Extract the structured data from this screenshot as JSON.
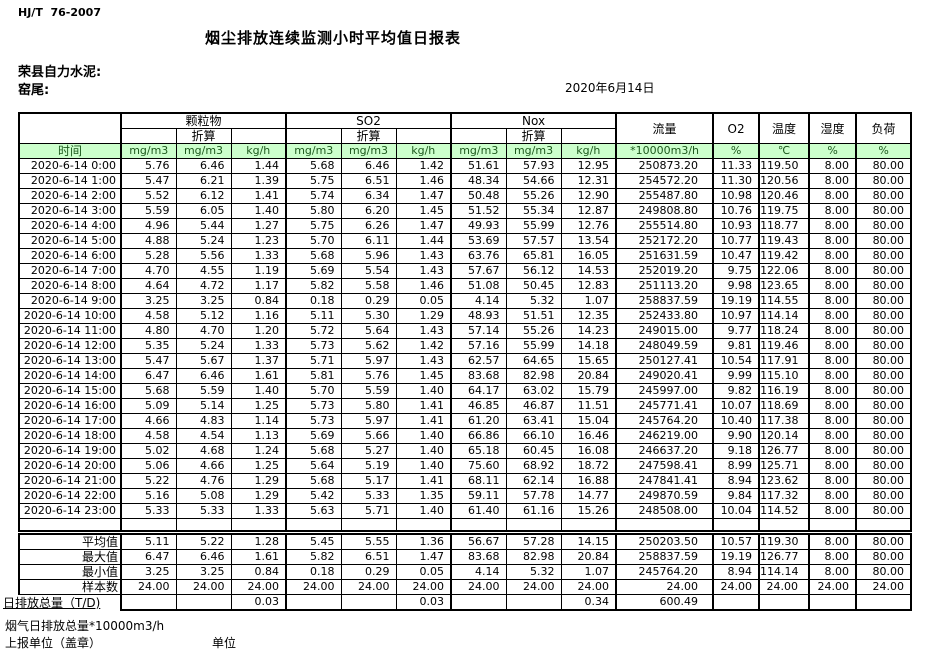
{
  "page": {
    "doc_code": "HJ/T  76-2007",
    "title": "烟尘排放连续监测小时平均值日报表",
    "company": "荣县自力水泥:",
    "kiln": "窑尾:",
    "date": "2020年6月14日",
    "footer_note": "烟气日排放总量*10000m3/h",
    "footer_report_unit": "上报单位（盖章）",
    "footer_unit": "单位"
  },
  "colors": {
    "header_green_bg": "#ccffcc",
    "header_green_text": "#1e5a1e",
    "border": "#000000"
  },
  "table": {
    "head": {
      "time": "时间",
      "pm": "颗粒物",
      "so2": "SO2",
      "nox": "Nox",
      "converted": "折算",
      "flow": "流量",
      "o2": "O2",
      "temp": "温度",
      "humidity": "湿度",
      "load": "负荷",
      "unit_mg": "mg/m3",
      "unit_kg": "kg/h",
      "unit_flow": "*10000m3/h",
      "unit_pct": "%",
      "unit_temp": "℃"
    },
    "rows": [
      [
        "2020-6-14 0:00",
        "5.76",
        "6.46",
        "1.44",
        "5.68",
        "6.46",
        "1.42",
        "51.61",
        "57.93",
        "12.95",
        "250873.20",
        "11.33",
        "119.50",
        "8.00",
        "80.00"
      ],
      [
        "2020-6-14 1:00",
        "5.47",
        "6.21",
        "1.39",
        "5.75",
        "6.51",
        "1.46",
        "48.34",
        "54.66",
        "12.31",
        "254572.20",
        "11.30",
        "120.56",
        "8.00",
        "80.00"
      ],
      [
        "2020-6-14 2:00",
        "5.52",
        "6.12",
        "1.41",
        "5.74",
        "6.34",
        "1.47",
        "50.48",
        "55.26",
        "12.90",
        "255487.80",
        "10.98",
        "120.46",
        "8.00",
        "80.00"
      ],
      [
        "2020-6-14 3:00",
        "5.59",
        "6.05",
        "1.40",
        "5.80",
        "6.20",
        "1.45",
        "51.52",
        "55.34",
        "12.87",
        "249808.80",
        "10.76",
        "119.75",
        "8.00",
        "80.00"
      ],
      [
        "2020-6-14 4:00",
        "4.96",
        "5.44",
        "1.27",
        "5.75",
        "6.26",
        "1.47",
        "49.93",
        "55.99",
        "12.76",
        "255514.80",
        "10.93",
        "118.77",
        "8.00",
        "80.00"
      ],
      [
        "2020-6-14 5:00",
        "4.88",
        "5.24",
        "1.23",
        "5.70",
        "6.11",
        "1.44",
        "53.69",
        "57.57",
        "13.54",
        "252172.20",
        "10.77",
        "119.43",
        "8.00",
        "80.00"
      ],
      [
        "2020-6-14 6:00",
        "5.28",
        "5.56",
        "1.33",
        "5.68",
        "5.96",
        "1.43",
        "63.76",
        "65.81",
        "16.05",
        "251631.59",
        "10.47",
        "119.42",
        "8.00",
        "80.00"
      ],
      [
        "2020-6-14 7:00",
        "4.70",
        "4.55",
        "1.19",
        "5.69",
        "5.54",
        "1.43",
        "57.67",
        "56.12",
        "14.53",
        "252019.20",
        "9.75",
        "122.06",
        "8.00",
        "80.00"
      ],
      [
        "2020-6-14 8:00",
        "4.64",
        "4.72",
        "1.17",
        "5.82",
        "5.58",
        "1.46",
        "51.08",
        "50.45",
        "12.83",
        "251113.20",
        "9.98",
        "123.65",
        "8.00",
        "80.00"
      ],
      [
        "2020-6-14 9:00",
        "3.25",
        "3.25",
        "0.84",
        "0.18",
        "0.29",
        "0.05",
        "4.14",
        "5.32",
        "1.07",
        "258837.59",
        "19.19",
        "114.55",
        "8.00",
        "80.00"
      ],
      [
        "2020-6-14 10:00",
        "4.58",
        "5.12",
        "1.16",
        "5.11",
        "5.30",
        "1.29",
        "48.93",
        "51.51",
        "12.35",
        "252433.80",
        "10.97",
        "114.14",
        "8.00",
        "80.00"
      ],
      [
        "2020-6-14 11:00",
        "4.80",
        "4.70",
        "1.20",
        "5.72",
        "5.64",
        "1.43",
        "57.14",
        "55.26",
        "14.23",
        "249015.00",
        "9.77",
        "118.24",
        "8.00",
        "80.00"
      ],
      [
        "2020-6-14 12:00",
        "5.35",
        "5.24",
        "1.33",
        "5.73",
        "5.62",
        "1.42",
        "57.16",
        "55.99",
        "14.18",
        "248049.59",
        "9.81",
        "119.46",
        "8.00",
        "80.00"
      ],
      [
        "2020-6-14 13:00",
        "5.47",
        "5.67",
        "1.37",
        "5.71",
        "5.97",
        "1.43",
        "62.57",
        "64.65",
        "15.65",
        "250127.41",
        "10.54",
        "117.91",
        "8.00",
        "80.00"
      ],
      [
        "2020-6-14 14:00",
        "6.47",
        "6.46",
        "1.61",
        "5.81",
        "5.76",
        "1.45",
        "83.68",
        "82.98",
        "20.84",
        "249020.41",
        "9.99",
        "115.10",
        "8.00",
        "80.00"
      ],
      [
        "2020-6-14 15:00",
        "5.68",
        "5.59",
        "1.40",
        "5.70",
        "5.59",
        "1.40",
        "64.17",
        "63.02",
        "15.79",
        "245997.00",
        "9.82",
        "116.19",
        "8.00",
        "80.00"
      ],
      [
        "2020-6-14 16:00",
        "5.09",
        "5.14",
        "1.25",
        "5.73",
        "5.80",
        "1.41",
        "46.85",
        "46.87",
        "11.51",
        "245771.41",
        "10.07",
        "118.69",
        "8.00",
        "80.00"
      ],
      [
        "2020-6-14 17:00",
        "4.66",
        "4.83",
        "1.14",
        "5.73",
        "5.97",
        "1.41",
        "61.20",
        "63.41",
        "15.04",
        "245764.20",
        "10.40",
        "117.38",
        "8.00",
        "80.00"
      ],
      [
        "2020-6-14 18:00",
        "4.58",
        "4.54",
        "1.13",
        "5.69",
        "5.66",
        "1.40",
        "66.86",
        "66.10",
        "16.46",
        "246219.00",
        "9.90",
        "120.14",
        "8.00",
        "80.00"
      ],
      [
        "2020-6-14 19:00",
        "5.02",
        "4.68",
        "1.24",
        "5.68",
        "5.27",
        "1.40",
        "65.18",
        "60.45",
        "16.08",
        "246637.20",
        "9.18",
        "126.77",
        "8.00",
        "80.00"
      ],
      [
        "2020-6-14 20:00",
        "5.06",
        "4.66",
        "1.25",
        "5.64",
        "5.19",
        "1.40",
        "75.60",
        "68.92",
        "18.72",
        "247598.41",
        "8.99",
        "125.71",
        "8.00",
        "80.00"
      ],
      [
        "2020-6-14 21:00",
        "5.22",
        "4.76",
        "1.29",
        "5.68",
        "5.17",
        "1.41",
        "68.11",
        "62.14",
        "16.88",
        "247841.41",
        "8.94",
        "123.62",
        "8.00",
        "80.00"
      ],
      [
        "2020-6-14 22:00",
        "5.16",
        "5.08",
        "1.29",
        "5.42",
        "5.33",
        "1.35",
        "59.11",
        "57.78",
        "14.77",
        "249870.59",
        "9.84",
        "117.32",
        "8.00",
        "80.00"
      ],
      [
        "2020-6-14 23:00",
        "5.33",
        "5.33",
        "1.33",
        "5.63",
        "5.71",
        "1.40",
        "61.40",
        "61.16",
        "15.26",
        "248508.00",
        "10.04",
        "114.52",
        "8.00",
        "80.00"
      ]
    ],
    "summary": [
      {
        "label": "平均值",
        "values": [
          "5.11",
          "5.22",
          "1.28",
          "5.45",
          "5.55",
          "1.36",
          "56.67",
          "57.28",
          "14.15",
          "250203.50",
          "10.57",
          "119.30",
          "8.00",
          "80.00"
        ]
      },
      {
        "label": "最大值",
        "values": [
          "6.47",
          "6.46",
          "1.61",
          "5.82",
          "6.51",
          "1.47",
          "83.68",
          "82.98",
          "20.84",
          "258837.59",
          "19.19",
          "126.77",
          "8.00",
          "80.00"
        ]
      },
      {
        "label": "最小值",
        "values": [
          "3.25",
          "3.25",
          "0.84",
          "0.18",
          "0.29",
          "0.05",
          "4.14",
          "5.32",
          "1.07",
          "245764.20",
          "8.94",
          "114.14",
          "8.00",
          "80.00"
        ]
      },
      {
        "label": "样本数",
        "values": [
          "24.00",
          "24.00",
          "24.00",
          "24.00",
          "24.00",
          "24.00",
          "24.00",
          "24.00",
          "24.00",
          "24.00",
          "24.00",
          "24.00",
          "24.00",
          "24.00"
        ]
      },
      {
        "label": "日排放总量（T/D)",
        "overflow_label": true,
        "values": [
          "",
          "",
          "0.03",
          "",
          "",
          "0.03",
          "",
          "",
          "0.34",
          "600.49",
          "",
          "",
          "",
          ""
        ]
      }
    ]
  }
}
